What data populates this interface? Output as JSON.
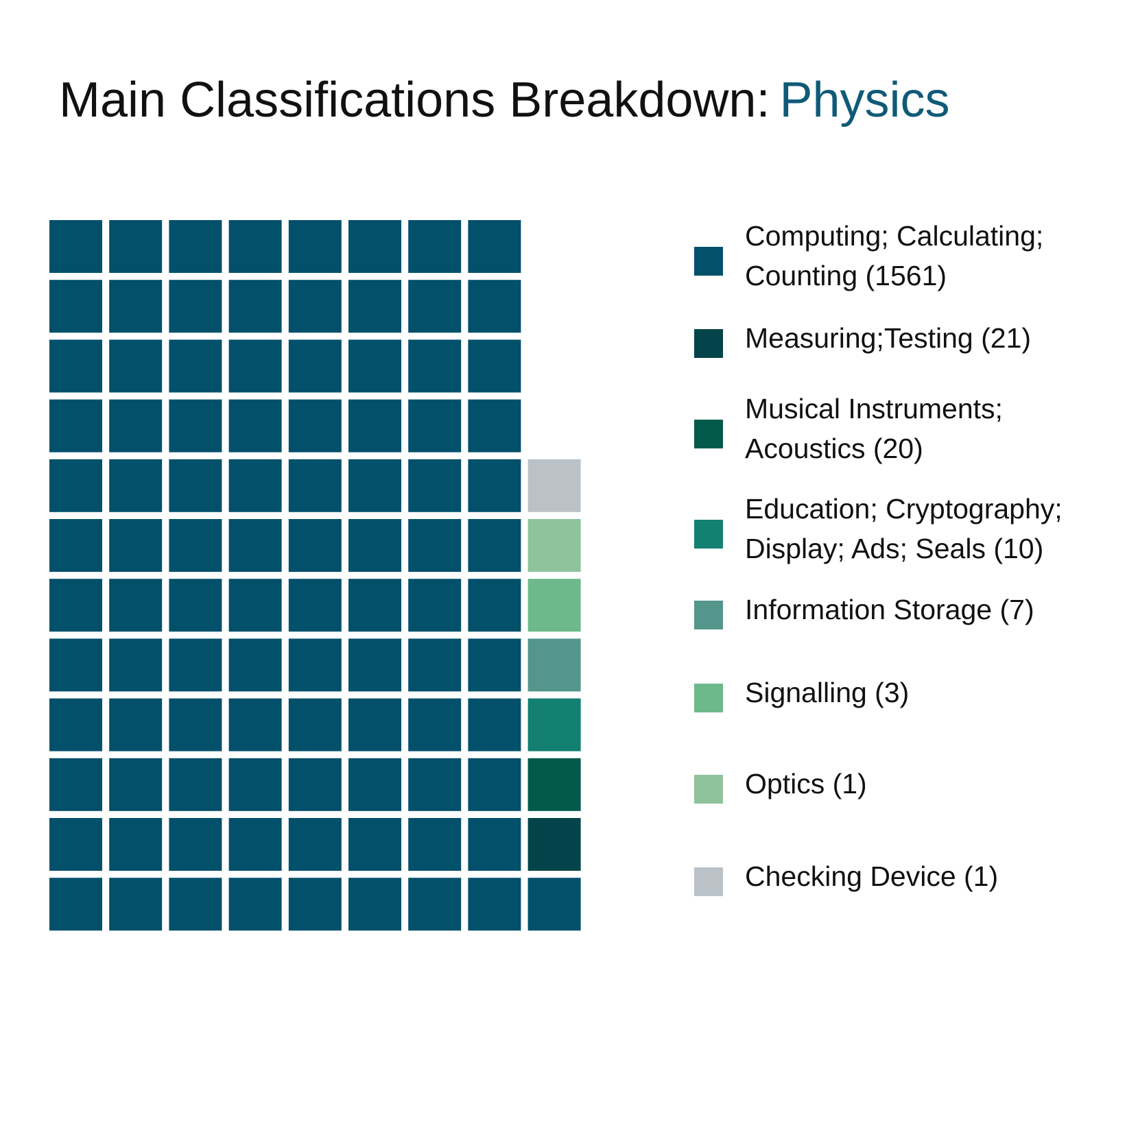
{
  "title": {
    "prefix": "Main Classifications Breakdown:",
    "highlight": "Physics"
  },
  "chart_data": {
    "type": "waffle",
    "title": "Main Classifications Breakdown: Physics",
    "grid": {
      "columns": 9,
      "rows": 12
    },
    "categories": [
      {
        "name": "Computing; Calculating; Counting (1561)",
        "lines": [
          "Computing; Calculating;",
          "Counting (1561)"
        ],
        "count": 1561,
        "tiles": 97,
        "color": "#03506B"
      },
      {
        "name": "Measuring;Testing (21)",
        "lines": [
          "Measuring;Testing (21)"
        ],
        "count": 21,
        "tiles": 1,
        "color": "#03444A"
      },
      {
        "name": "Musical Instruments; Acoustics (20)",
        "lines": [
          "Musical Instruments;",
          "Acoustics (20)"
        ],
        "count": 20,
        "tiles": 1,
        "color": "#035A4A"
      },
      {
        "name": "Education; Cryptography; Display; Ads; Seals (10)",
        "lines": [
          "Education; Cryptography;",
          "Display; Ads; Seals (10)"
        ],
        "count": 10,
        "tiles": 1,
        "color": "#138072"
      },
      {
        "name": "Information Storage (7)",
        "lines": [
          "Information Storage (7)"
        ],
        "count": 7,
        "tiles": 1,
        "color": "#54968B"
      },
      {
        "name": "Signalling (3)",
        "lines": [
          "Signalling (3)"
        ],
        "count": 3,
        "tiles": 1,
        "color": "#6DB98C"
      },
      {
        "name": "Optics (1)",
        "lines": [
          "Optics (1)"
        ],
        "count": 1,
        "tiles": 1,
        "color": "#8FC39B"
      },
      {
        "name": "Checking Device (1)",
        "lines": [
          "Checking Device (1)"
        ],
        "count": 1,
        "tiles": 1,
        "color": "#BAC2C8"
      }
    ],
    "legend": "right",
    "title_colors": {
      "prefix": "#111111",
      "highlight": "#0F5A78"
    }
  }
}
